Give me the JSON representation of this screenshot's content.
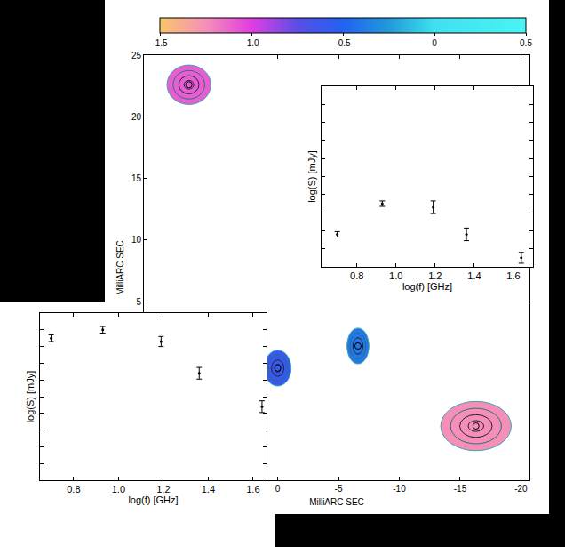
{
  "chart_data": [
    {
      "type": "scatter",
      "xlabel": "MilliARC SEC",
      "ylabel": "MilliARC SEC",
      "x": [
        7.3,
        0,
        -6.6,
        -16.3
      ],
      "y": [
        22.6,
        -0.4,
        1.4,
        -5.1
      ],
      "size_x": [
        3.6,
        2.2,
        1.8,
        5.8
      ],
      "size_y": [
        3.2,
        2.9,
        2.9,
        4.0
      ],
      "values": [
        -1.1,
        -0.6,
        -0.4,
        -1.25
      ],
      "colorbar": {
        "range": [
          -1.5,
          0.5
        ],
        "ticks": [
          -1.5,
          {
            "value": -1,
            "label": "-1.0"
          },
          -0.5,
          0,
          0.5
        ]
      },
      "xlim": [
        11,
        -20.7
      ],
      "ylim": [
        -9.5,
        25
      ],
      "xticks": [
        0,
        -5,
        -10,
        -15,
        -20
      ],
      "yticks": [
        5,
        10,
        15,
        20,
        25
      ],
      "grid": false
    },
    {
      "type": "scatter",
      "xlabel": "log(f) [GHz]",
      "ylabel": "log(S) [mJy]",
      "x": [
        0.7,
        0.93,
        1.19,
        1.36,
        1.64
      ],
      "values": [
        1.18,
        1.35,
        1.33,
        1.18,
        1.05
      ],
      "errors": [
        0.015,
        0.015,
        0.035,
        0.035,
        0.03
      ],
      "xlim": [
        0.62,
        1.7
      ],
      "ylim": [
        1,
        2
      ],
      "xticks": [
        0.8,
        {
          "value": 1,
          "label": "1.0"
        },
        1.2,
        1.4,
        1.6
      ],
      "yticks": [
        1.1,
        1.2,
        1.3,
        1.4,
        1.5,
        1.6,
        1.7,
        1.8,
        1.9
      ],
      "tick_labels": "x",
      "grid": false,
      "color": "#000000"
    },
    {
      "type": "scatter",
      "xlabel": "log(f) [GHz]",
      "ylabel": "log(S) [mJy]",
      "x": [
        0.7,
        0.93,
        1.19,
        1.36,
        1.64
      ],
      "values": [
        1.85,
        1.9,
        1.83,
        1.64,
        1.44
      ],
      "errors": [
        0.02,
        0.02,
        0.03,
        0.035,
        0.035
      ],
      "xlim": [
        0.65,
        1.66
      ],
      "ylim": [
        1,
        2
      ],
      "xticks": [
        0.8,
        {
          "value": 1,
          "label": "1.0"
        },
        1.2,
        1.4,
        1.6
      ],
      "yticks": [
        1.1,
        1.2,
        1.3,
        1.4,
        1.5,
        1.6,
        1.7,
        1.8,
        1.9
      ],
      "tick_labels": "x",
      "grid": false,
      "color": "#000000"
    }
  ]
}
